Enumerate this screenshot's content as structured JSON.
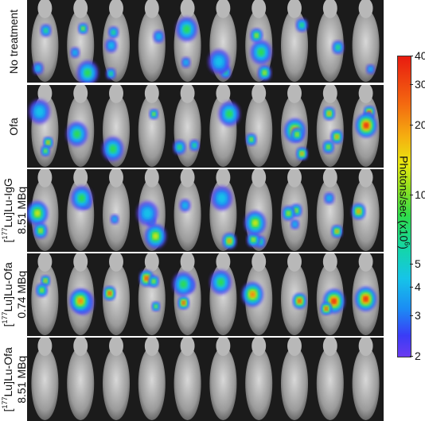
{
  "rows": [
    {
      "label_line1": "No treatment",
      "label_line2": "",
      "intensity": 0.45
    },
    {
      "label_line1": "Ofa",
      "label_line2": "",
      "intensity": 0.6
    },
    {
      "label_pre": "[",
      "label_sup": "177",
      "label_post": "Lu]Lu-IgG",
      "label_line2": "8.51 MBq",
      "intensity": 0.5
    },
    {
      "label_pre": "[",
      "label_sup": "177",
      "label_post": "Lu]Lu-Ofa",
      "label_line2": "0.74 MBq",
      "intensity": 0.85
    },
    {
      "label_pre": "[",
      "label_sup": "177",
      "label_post": "Lu]Lu-Ofa",
      "label_line2": "8.51 MBq",
      "intensity": 0.0
    }
  ],
  "colorbar": {
    "title_pre": "Photons/sec  (x10",
    "title_sup": "6",
    "title_post": ")",
    "ticks": [
      "40",
      "30",
      "20",
      "10",
      "5",
      "4",
      "3",
      "2"
    ],
    "scale": "log",
    "range": [
      2,
      40
    ],
    "colors": [
      "#6a3cf0",
      "#1b8cf4",
      "#16c4e8",
      "#2fdc4a",
      "#e8e810",
      "#f46a10",
      "#e81b10"
    ]
  }
}
